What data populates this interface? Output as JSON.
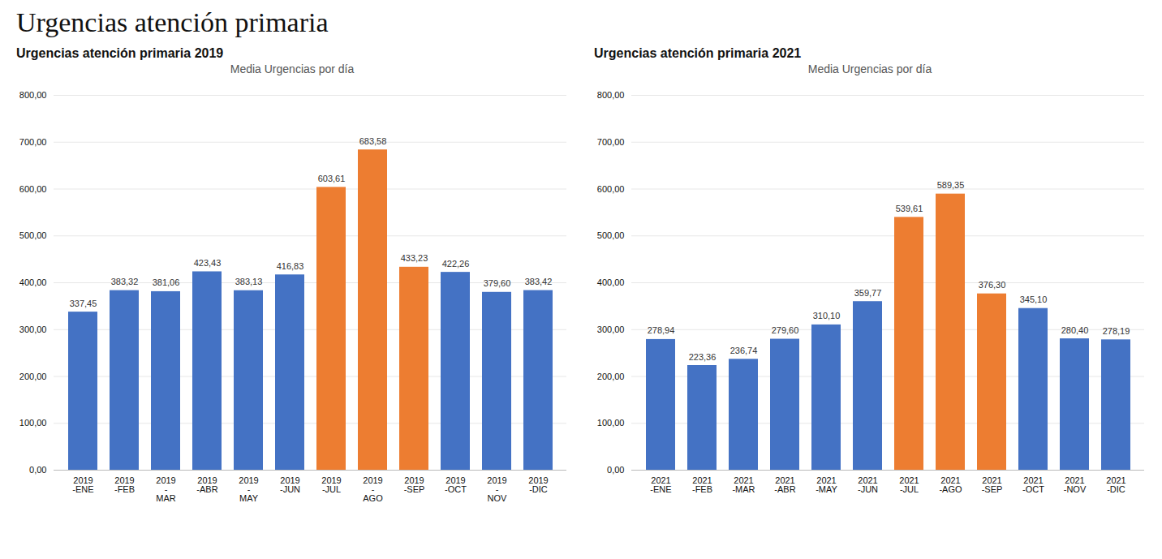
{
  "title": "Urgencias atención primaria",
  "chart_data": [
    {
      "type": "bar",
      "title": "Urgencias atención primaria 2019",
      "subtitle": "Media Urgencias por día",
      "categories": [
        "2019\n-ENE",
        "2019\n-FEB",
        "2019\n-\nMAR",
        "2019\n-ABR\n",
        "2019\n-\nMAY",
        "2019\n-JUN",
        "2019\n-JUL",
        "2019\n-\nAGO",
        "2019\n-SEP",
        "2019\n-OCT\n",
        "2019\n-\nNOV",
        "2019\n-DIC"
      ],
      "values": [
        337.45,
        383.32,
        381.06,
        423.43,
        383.13,
        416.83,
        603.61,
        683.58,
        433.23,
        422.26,
        379.6,
        383.42
      ],
      "value_labels": [
        "337,45",
        "383,32",
        "381,06",
        "423,43",
        "383,13",
        "416,83",
        "603,61",
        "683,58",
        "433,23",
        "422,26",
        "379,60",
        "383,42"
      ],
      "colors": [
        "#4472c4",
        "#4472c4",
        "#4472c4",
        "#4472c4",
        "#4472c4",
        "#4472c4",
        "#ed7d31",
        "#ed7d31",
        "#ed7d31",
        "#4472c4",
        "#4472c4",
        "#4472c4"
      ],
      "ylim": [
        0,
        800
      ],
      "yticks": [
        {
          "value": 0,
          "label": "0,00"
        },
        {
          "value": 100,
          "label": "100,00"
        },
        {
          "value": 200,
          "label": "200,00"
        },
        {
          "value": 300,
          "label": "300,00"
        },
        {
          "value": 400,
          "label": "400,00"
        },
        {
          "value": 500,
          "label": "500,00"
        },
        {
          "value": 600,
          "label": "600,00"
        },
        {
          "value": 700,
          "label": "700,00"
        },
        {
          "value": 800,
          "label": "800,00"
        }
      ],
      "grid": true,
      "data_labels": true
    },
    {
      "type": "bar",
      "title": "Urgencias atención primaria 2021",
      "subtitle": "Media Urgencias por día",
      "categories": [
        "2021\n-ENE",
        "2021\n-FEB",
        "2021\n-MAR",
        "2021\n-ABR",
        "2021\n-MAY",
        "2021\n-JUN",
        "2021\n-JUL",
        "2021\n-AGO",
        "2021\n-SEP",
        "2021\n-OCT",
        "2021\n-NOV",
        "2021\n-DIC"
      ],
      "values": [
        278.94,
        223.36,
        236.74,
        279.6,
        310.1,
        359.77,
        539.61,
        589.35,
        376.3,
        345.1,
        280.4,
        278.19
      ],
      "value_labels": [
        "278,94",
        "223,36",
        "236,74",
        "279,60",
        "310,10",
        "359,77",
        "539,61",
        "589,35",
        "376,30",
        "345,10",
        "280,40",
        "278,19"
      ],
      "colors": [
        "#4472c4",
        "#4472c4",
        "#4472c4",
        "#4472c4",
        "#4472c4",
        "#4472c4",
        "#ed7d31",
        "#ed7d31",
        "#ed7d31",
        "#4472c4",
        "#4472c4",
        "#4472c4"
      ],
      "ylim": [
        0,
        800
      ],
      "yticks": [
        {
          "value": 0,
          "label": "0,00"
        },
        {
          "value": 100,
          "label": "100,00"
        },
        {
          "value": 200,
          "label": "200,00"
        },
        {
          "value": 300,
          "label": "300,00"
        },
        {
          "value": 400,
          "label": "400,00"
        },
        {
          "value": 500,
          "label": "500,00"
        },
        {
          "value": 600,
          "label": "600,00"
        },
        {
          "value": 700,
          "label": "700,00"
        },
        {
          "value": 800,
          "label": "800,00"
        }
      ],
      "grid": true,
      "data_labels": true
    }
  ]
}
